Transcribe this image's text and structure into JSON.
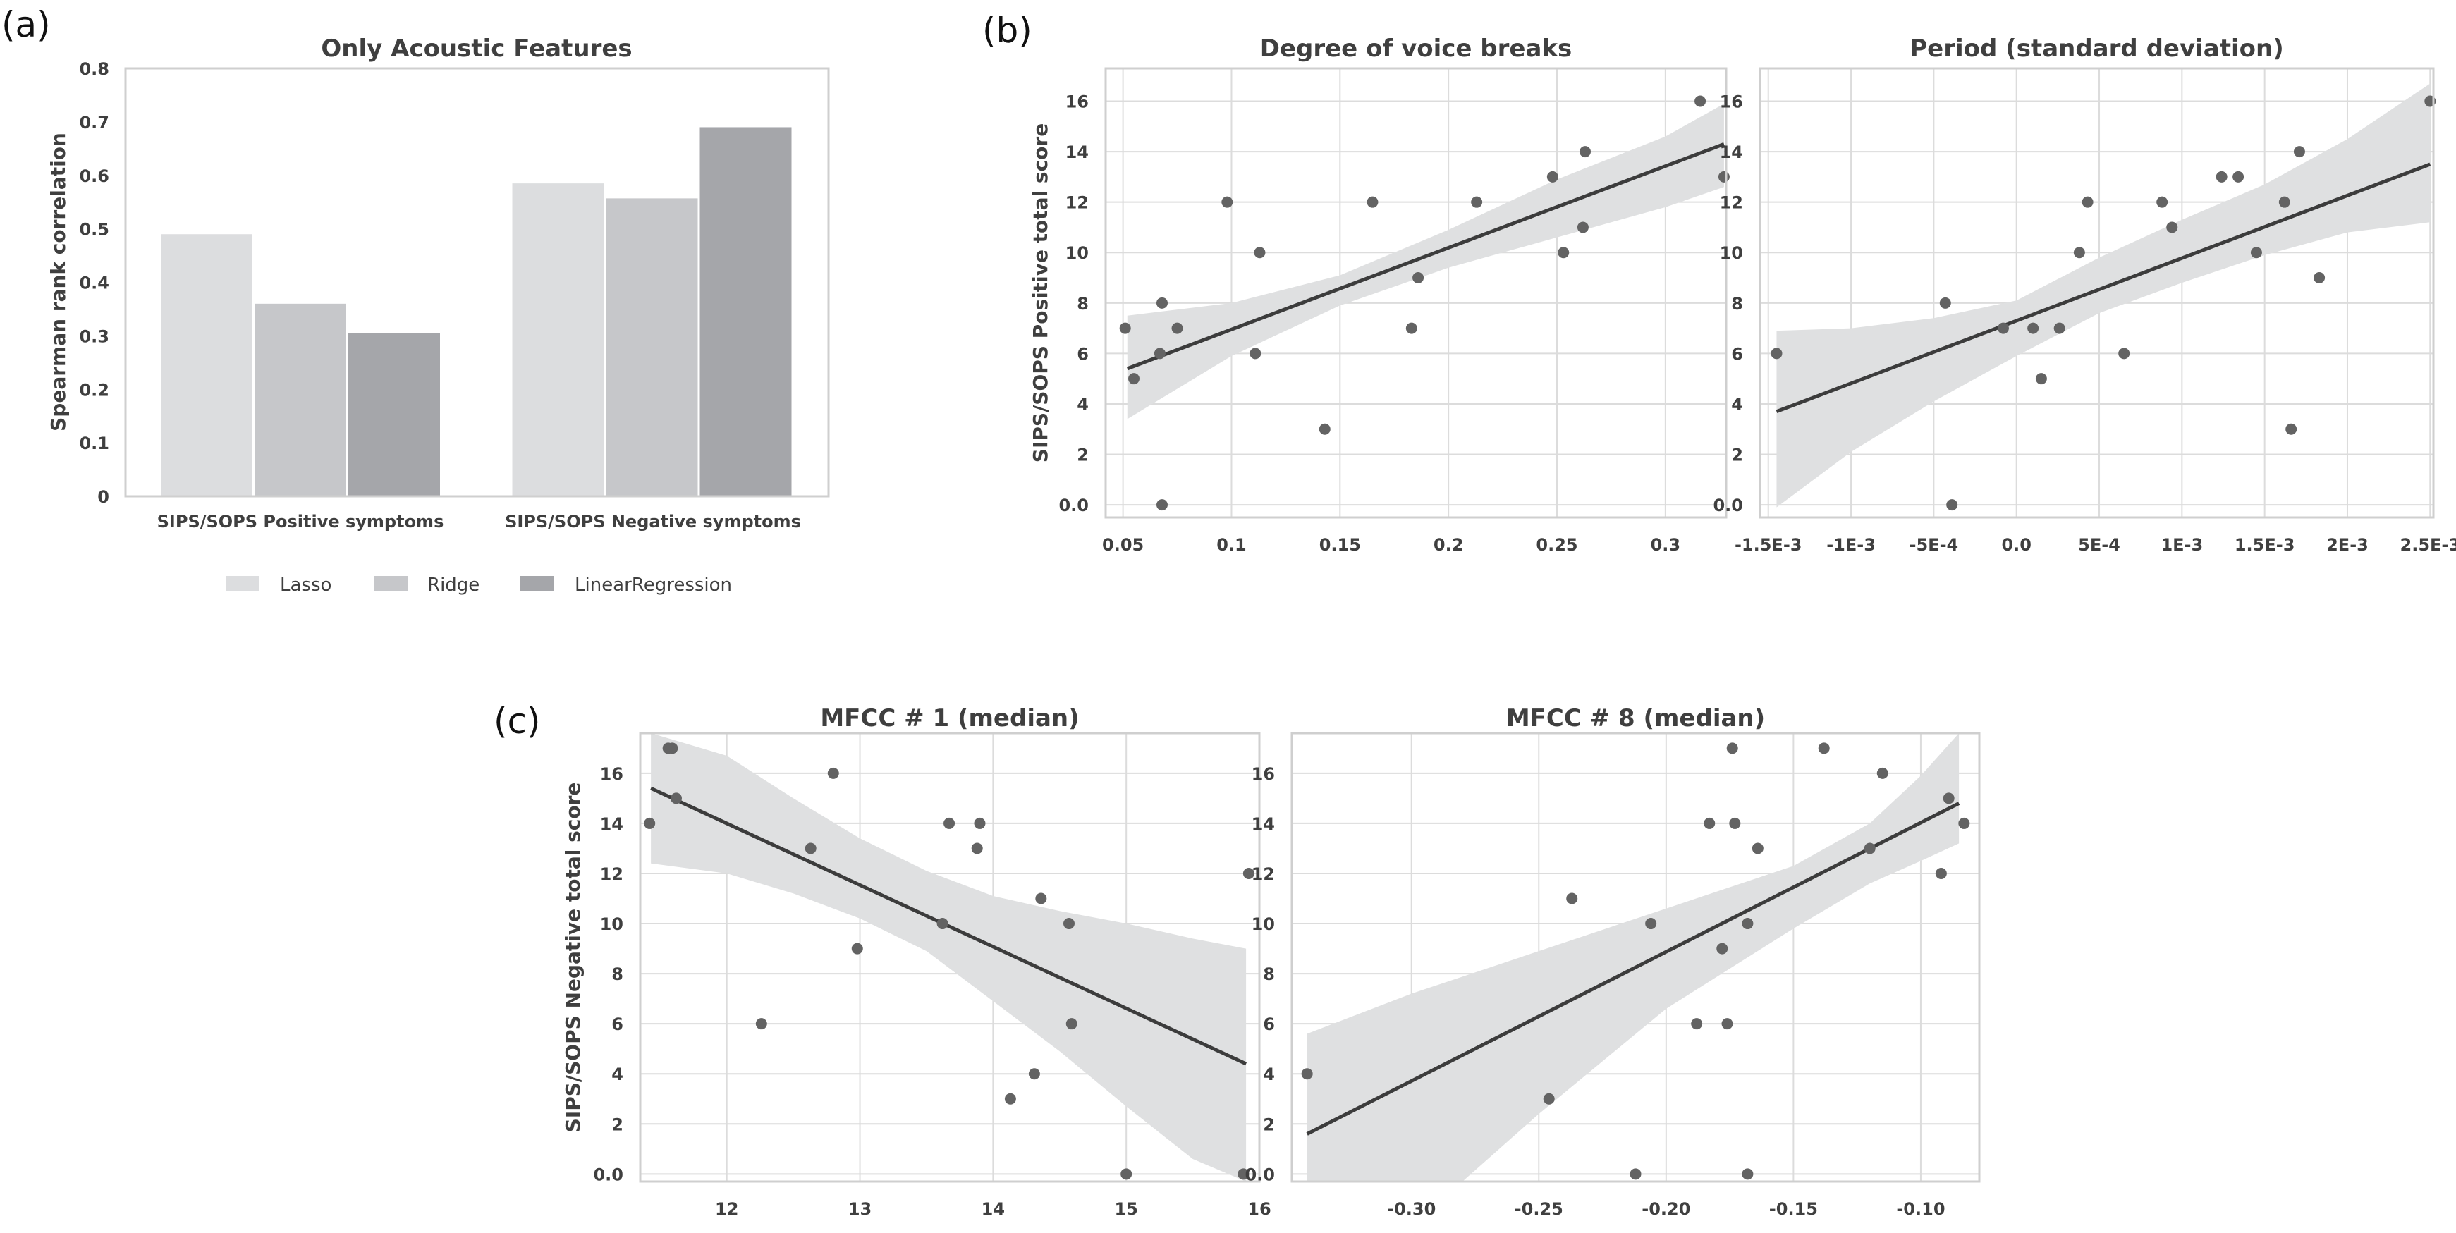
{
  "panel_labels": {
    "a": "(a)",
    "b": "(b)",
    "c": "(c)"
  },
  "colors": {
    "lasso": "#dcdddf",
    "ridge": "#c6c7ca",
    "linreg": "#a5a6aa",
    "points": "#636363",
    "fit_line": "#3c3c3c",
    "band": "#dfe0e1",
    "grid": "#dcdcdc"
  },
  "chart_data": [
    {
      "type": "bar",
      "title": "Only Acoustic Features",
      "ylabel": "Spearman rank correlation",
      "xlabel": "",
      "ylim": [
        0,
        0.8
      ],
      "yticks": [
        0,
        0.1,
        0.2,
        0.3,
        0.4,
        0.5,
        0.6,
        0.7,
        0.8
      ],
      "ytick_labels": [
        "0",
        "0.1",
        "0.2",
        "0.3",
        "0.4",
        "0.5",
        "0.6",
        "0.7",
        "0.8"
      ],
      "categories": [
        "SIPS/SOPS Positive symptoms",
        "SIPS/SOPS Negative symptoms"
      ],
      "series": [
        {
          "name": "Lasso",
          "values": [
            0.49,
            0.585
          ]
        },
        {
          "name": "Ridge",
          "values": [
            0.36,
            0.557
          ]
        },
        {
          "name": "LinearRegression",
          "values": [
            0.305,
            0.69
          ]
        }
      ],
      "legend": "bottom-center",
      "grid": false
    },
    {
      "type": "scatter",
      "title": "Degree of voice breaks",
      "ylabel": "SIPS/SOPS Positive total score",
      "xlabel": "",
      "xlim": [
        0.042,
        0.328
      ],
      "ylim": [
        -0.5,
        17.3
      ],
      "xticks": [
        0.05,
        0.1,
        0.15,
        0.2,
        0.25,
        0.3
      ],
      "xtick_labels": [
        "0.05",
        "0.1",
        "0.15",
        "0.2",
        "0.25",
        "0.3"
      ],
      "yticks": [
        0,
        2,
        4,
        6,
        8,
        10,
        12,
        14,
        16
      ],
      "ytick_labels": [
        "0.0",
        "2",
        "4",
        "6",
        "8",
        "10",
        "12",
        "14",
        "16"
      ],
      "points": [
        [
          0.051,
          7
        ],
        [
          0.055,
          5
        ],
        [
          0.067,
          6
        ],
        [
          0.068,
          8
        ],
        [
          0.068,
          0
        ],
        [
          0.075,
          7
        ],
        [
          0.098,
          12
        ],
        [
          0.111,
          6
        ],
        [
          0.113,
          10
        ],
        [
          0.143,
          3
        ],
        [
          0.165,
          12
        ],
        [
          0.183,
          7
        ],
        [
          0.186,
          9
        ],
        [
          0.213,
          12
        ],
        [
          0.248,
          13
        ],
        [
          0.253,
          10
        ],
        [
          0.262,
          11
        ],
        [
          0.263,
          14
        ],
        [
          0.316,
          16
        ],
        [
          0.327,
          13
        ]
      ],
      "fit": [
        [
          0.052,
          5.4
        ],
        [
          0.327,
          14.3
        ]
      ],
      "band_upper": [
        [
          0.052,
          7.5
        ],
        [
          0.1,
          8.0
        ],
        [
          0.15,
          9.1
        ],
        [
          0.2,
          10.9
        ],
        [
          0.25,
          12.9
        ],
        [
          0.3,
          14.6
        ],
        [
          0.327,
          15.9
        ]
      ],
      "band_lower": [
        [
          0.052,
          3.4
        ],
        [
          0.1,
          5.9
        ],
        [
          0.15,
          7.9
        ],
        [
          0.2,
          9.4
        ],
        [
          0.25,
          10.6
        ],
        [
          0.3,
          11.8
        ],
        [
          0.327,
          12.6
        ]
      ],
      "grid": true
    },
    {
      "type": "scatter",
      "title": "Period (standard deviation)",
      "ylabel": "",
      "xlabel": "",
      "xlim": [
        -0.00155,
        0.00252
      ],
      "ylim": [
        -0.5,
        17.3
      ],
      "xticks": [
        -0.0015,
        -0.001,
        -0.0005,
        0,
        0.0005,
        0.001,
        0.0015,
        0.002,
        0.0025
      ],
      "xtick_labels": [
        "-1.5E-3",
        "-1E-3",
        "-5E-4",
        "0.0",
        "5E-4",
        "1E-3",
        "1.5E-3",
        "2E-3",
        "2.5E-3"
      ],
      "yticks": [
        0,
        2,
        4,
        6,
        8,
        10,
        12,
        14,
        16
      ],
      "ytick_labels": [
        "0.0",
        "2",
        "4",
        "6",
        "8",
        "10",
        "12",
        "14",
        "16"
      ],
      "points": [
        [
          -0.00145,
          6
        ],
        [
          -0.00043,
          8
        ],
        [
          -0.00039,
          0
        ],
        [
          -8e-05,
          7
        ],
        [
          0.0001,
          7
        ],
        [
          0.00015,
          5
        ],
        [
          0.00026,
          7
        ],
        [
          0.00038,
          10
        ],
        [
          0.00043,
          12
        ],
        [
          0.00065,
          6
        ],
        [
          0.00088,
          12
        ],
        [
          0.00094,
          11
        ],
        [
          0.00124,
          13
        ],
        [
          0.00134,
          13
        ],
        [
          0.00145,
          10
        ],
        [
          0.00162,
          12
        ],
        [
          0.00166,
          3
        ],
        [
          0.00171,
          14
        ],
        [
          0.00183,
          9
        ],
        [
          0.0025,
          16
        ]
      ],
      "fit": [
        [
          -0.00145,
          3.7
        ],
        [
          0.0025,
          13.5
        ]
      ],
      "band_upper": [
        [
          -0.00145,
          6.9
        ],
        [
          -0.001,
          7.0
        ],
        [
          -0.0005,
          7.4
        ],
        [
          0,
          8.1
        ],
        [
          0.0005,
          9.8
        ],
        [
          0.001,
          11.3
        ],
        [
          0.0015,
          12.7
        ],
        [
          0.002,
          14.5
        ],
        [
          0.0025,
          16.7
        ]
      ],
      "band_lower": [
        [
          -0.00145,
          -0.1
        ],
        [
          -0.001,
          2.1
        ],
        [
          -0.0005,
          4.1
        ],
        [
          0,
          5.9
        ],
        [
          0.0005,
          7.6
        ],
        [
          0.001,
          8.8
        ],
        [
          0.0015,
          9.9
        ],
        [
          0.002,
          10.8
        ],
        [
          0.0025,
          11.2
        ]
      ],
      "grid": true
    },
    {
      "type": "scatter",
      "title": "MFCC # 1 (median)",
      "ylabel": "SIPS/SOPS Negative total score",
      "xlabel": "",
      "xlim": [
        11.35,
        16.0
      ],
      "ylim": [
        -0.3,
        17.6
      ],
      "xticks": [
        12,
        13,
        14,
        15,
        16
      ],
      "xtick_labels": [
        "12",
        "13",
        "14",
        "15",
        "16"
      ],
      "yticks": [
        0,
        2,
        4,
        6,
        8,
        10,
        12,
        14,
        16
      ],
      "ytick_labels": [
        "0.0",
        "2",
        "4",
        "6",
        "8",
        "10",
        "12",
        "14",
        "16"
      ],
      "points": [
        [
          11.42,
          14
        ],
        [
          11.56,
          17
        ],
        [
          11.59,
          17
        ],
        [
          11.62,
          15
        ],
        [
          12.26,
          6
        ],
        [
          12.63,
          13
        ],
        [
          12.8,
          16
        ],
        [
          12.98,
          9
        ],
        [
          13.62,
          10
        ],
        [
          13.67,
          14
        ],
        [
          13.88,
          13
        ],
        [
          13.9,
          14
        ],
        [
          14.13,
          3
        ],
        [
          14.31,
          4
        ],
        [
          14.36,
          11
        ],
        [
          14.57,
          10
        ],
        [
          14.59,
          6
        ],
        [
          15.0,
          0
        ],
        [
          15.88,
          0
        ],
        [
          15.92,
          12
        ]
      ],
      "fit": [
        [
          11.43,
          15.4
        ],
        [
          15.9,
          4.4
        ]
      ],
      "band_upper": [
        [
          11.43,
          17.6
        ],
        [
          12,
          16.7
        ],
        [
          12.5,
          15.0
        ],
        [
          13,
          13.4
        ],
        [
          13.5,
          12.1
        ],
        [
          14,
          11.1
        ],
        [
          14.5,
          10.5
        ],
        [
          15,
          10.0
        ],
        [
          15.5,
          9.4
        ],
        [
          15.9,
          9.0
        ]
      ],
      "band_lower": [
        [
          11.43,
          12.4
        ],
        [
          12,
          12.0
        ],
        [
          12.5,
          11.2
        ],
        [
          13,
          10.2
        ],
        [
          13.5,
          8.9
        ],
        [
          14,
          6.9
        ],
        [
          14.5,
          4.9
        ],
        [
          15,
          2.7
        ],
        [
          15.5,
          0.6
        ],
        [
          15.9,
          -0.3
        ]
      ],
      "grid": true
    },
    {
      "type": "scatter",
      "title": "MFCC # 8 (median)",
      "ylabel": "",
      "xlabel": "",
      "xlim": [
        -0.347,
        -0.077
      ],
      "ylim": [
        -0.3,
        17.6
      ],
      "xticks": [
        -0.3,
        -0.25,
        -0.2,
        -0.15,
        -0.1
      ],
      "xtick_labels": [
        "-0.30",
        "-0.25",
        "-0.20",
        "-0.15",
        "-0.10"
      ],
      "yticks": [
        0,
        2,
        4,
        6,
        8,
        10,
        12,
        14,
        16
      ],
      "ytick_labels": [
        "0.0",
        "2",
        "4",
        "6",
        "8",
        "10",
        "12",
        "14",
        "16"
      ],
      "points": [
        [
          -0.341,
          4
        ],
        [
          -0.246,
          3
        ],
        [
          -0.237,
          11
        ],
        [
          -0.212,
          0
        ],
        [
          -0.206,
          10
        ],
        [
          -0.188,
          6
        ],
        [
          -0.183,
          14
        ],
        [
          -0.178,
          9
        ],
        [
          -0.176,
          6
        ],
        [
          -0.174,
          17
        ],
        [
          -0.173,
          14
        ],
        [
          -0.168,
          10
        ],
        [
          -0.168,
          0
        ],
        [
          -0.164,
          13
        ],
        [
          -0.138,
          17
        ],
        [
          -0.12,
          13
        ],
        [
          -0.115,
          16
        ],
        [
          -0.092,
          12
        ],
        [
          -0.089,
          15
        ],
        [
          -0.083,
          14
        ]
      ],
      "fit": [
        [
          -0.341,
          1.6
        ],
        [
          -0.085,
          14.8
        ]
      ],
      "band_upper": [
        [
          -0.341,
          5.6
        ],
        [
          -0.3,
          7.2
        ],
        [
          -0.25,
          8.9
        ],
        [
          -0.2,
          10.6
        ],
        [
          -0.15,
          12.3
        ],
        [
          -0.12,
          14.0
        ],
        [
          -0.1,
          15.9
        ],
        [
          -0.085,
          17.6
        ]
      ],
      "band_lower": [
        [
          -0.341,
          -0.3
        ],
        [
          -0.28,
          -0.3
        ],
        [
          -0.25,
          2.4
        ],
        [
          -0.2,
          6.6
        ],
        [
          -0.15,
          9.8
        ],
        [
          -0.12,
          11.6
        ],
        [
          -0.1,
          12.5
        ],
        [
          -0.085,
          13.2
        ]
      ],
      "grid": true
    }
  ]
}
